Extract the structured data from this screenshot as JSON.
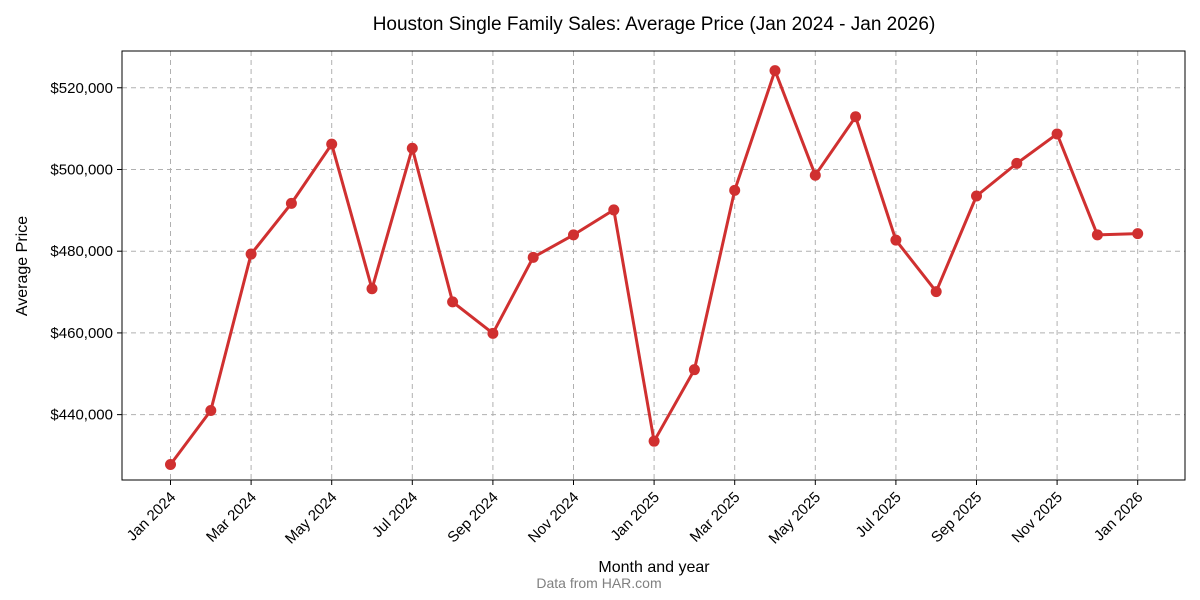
{
  "chart_data": {
    "type": "line",
    "title": "Houston Single Family Sales: Average Price (Jan 2024 - Jan 2026)",
    "xlabel": "Month and year",
    "ylabel": "Average Price",
    "source": "Data from HAR.com",
    "color": "#d03030",
    "grid": true,
    "ylim": [
      424000,
      529000
    ],
    "yticks": [
      440000,
      460000,
      480000,
      500000,
      520000
    ],
    "ytick_labels": [
      "$440,000",
      "$460,000",
      "$480,000",
      "$500,000",
      "$520,000"
    ],
    "xtick_indices": [
      0,
      2,
      4,
      6,
      8,
      10,
      12,
      14,
      16,
      18,
      20,
      22,
      24
    ],
    "xtick_labels": [
      "Jan 2024",
      "Mar 2024",
      "May 2024",
      "Jul 2024",
      "Sep 2024",
      "Nov 2024",
      "Jan 2025",
      "Mar 2025",
      "May 2025",
      "Jul 2025",
      "Sep 2025",
      "Nov 2025",
      "Jan 2026"
    ],
    "categories": [
      "Jan 2024",
      "Feb 2024",
      "Mar 2024",
      "Apr 2024",
      "May 2024",
      "Jun 2024",
      "Jul 2024",
      "Aug 2024",
      "Sep 2024",
      "Oct 2024",
      "Nov 2024",
      "Dec 2024",
      "Jan 2025",
      "Feb 2025",
      "Mar 2025",
      "Apr 2025",
      "May 2025",
      "Jun 2025",
      "Jul 2025",
      "Aug 2025",
      "Sep 2025",
      "Oct 2025",
      "Nov 2025",
      "Dec 2025",
      "Jan 2026"
    ],
    "series": [
      {
        "name": "Average Price",
        "values": [
          427800,
          441000,
          479300,
          491700,
          506200,
          470800,
          505200,
          467600,
          459900,
          478500,
          484000,
          490100,
          433500,
          451000,
          494900,
          524200,
          498600,
          512900,
          482700,
          470100,
          493500,
          501500,
          508700,
          484000,
          484300
        ]
      }
    ]
  }
}
